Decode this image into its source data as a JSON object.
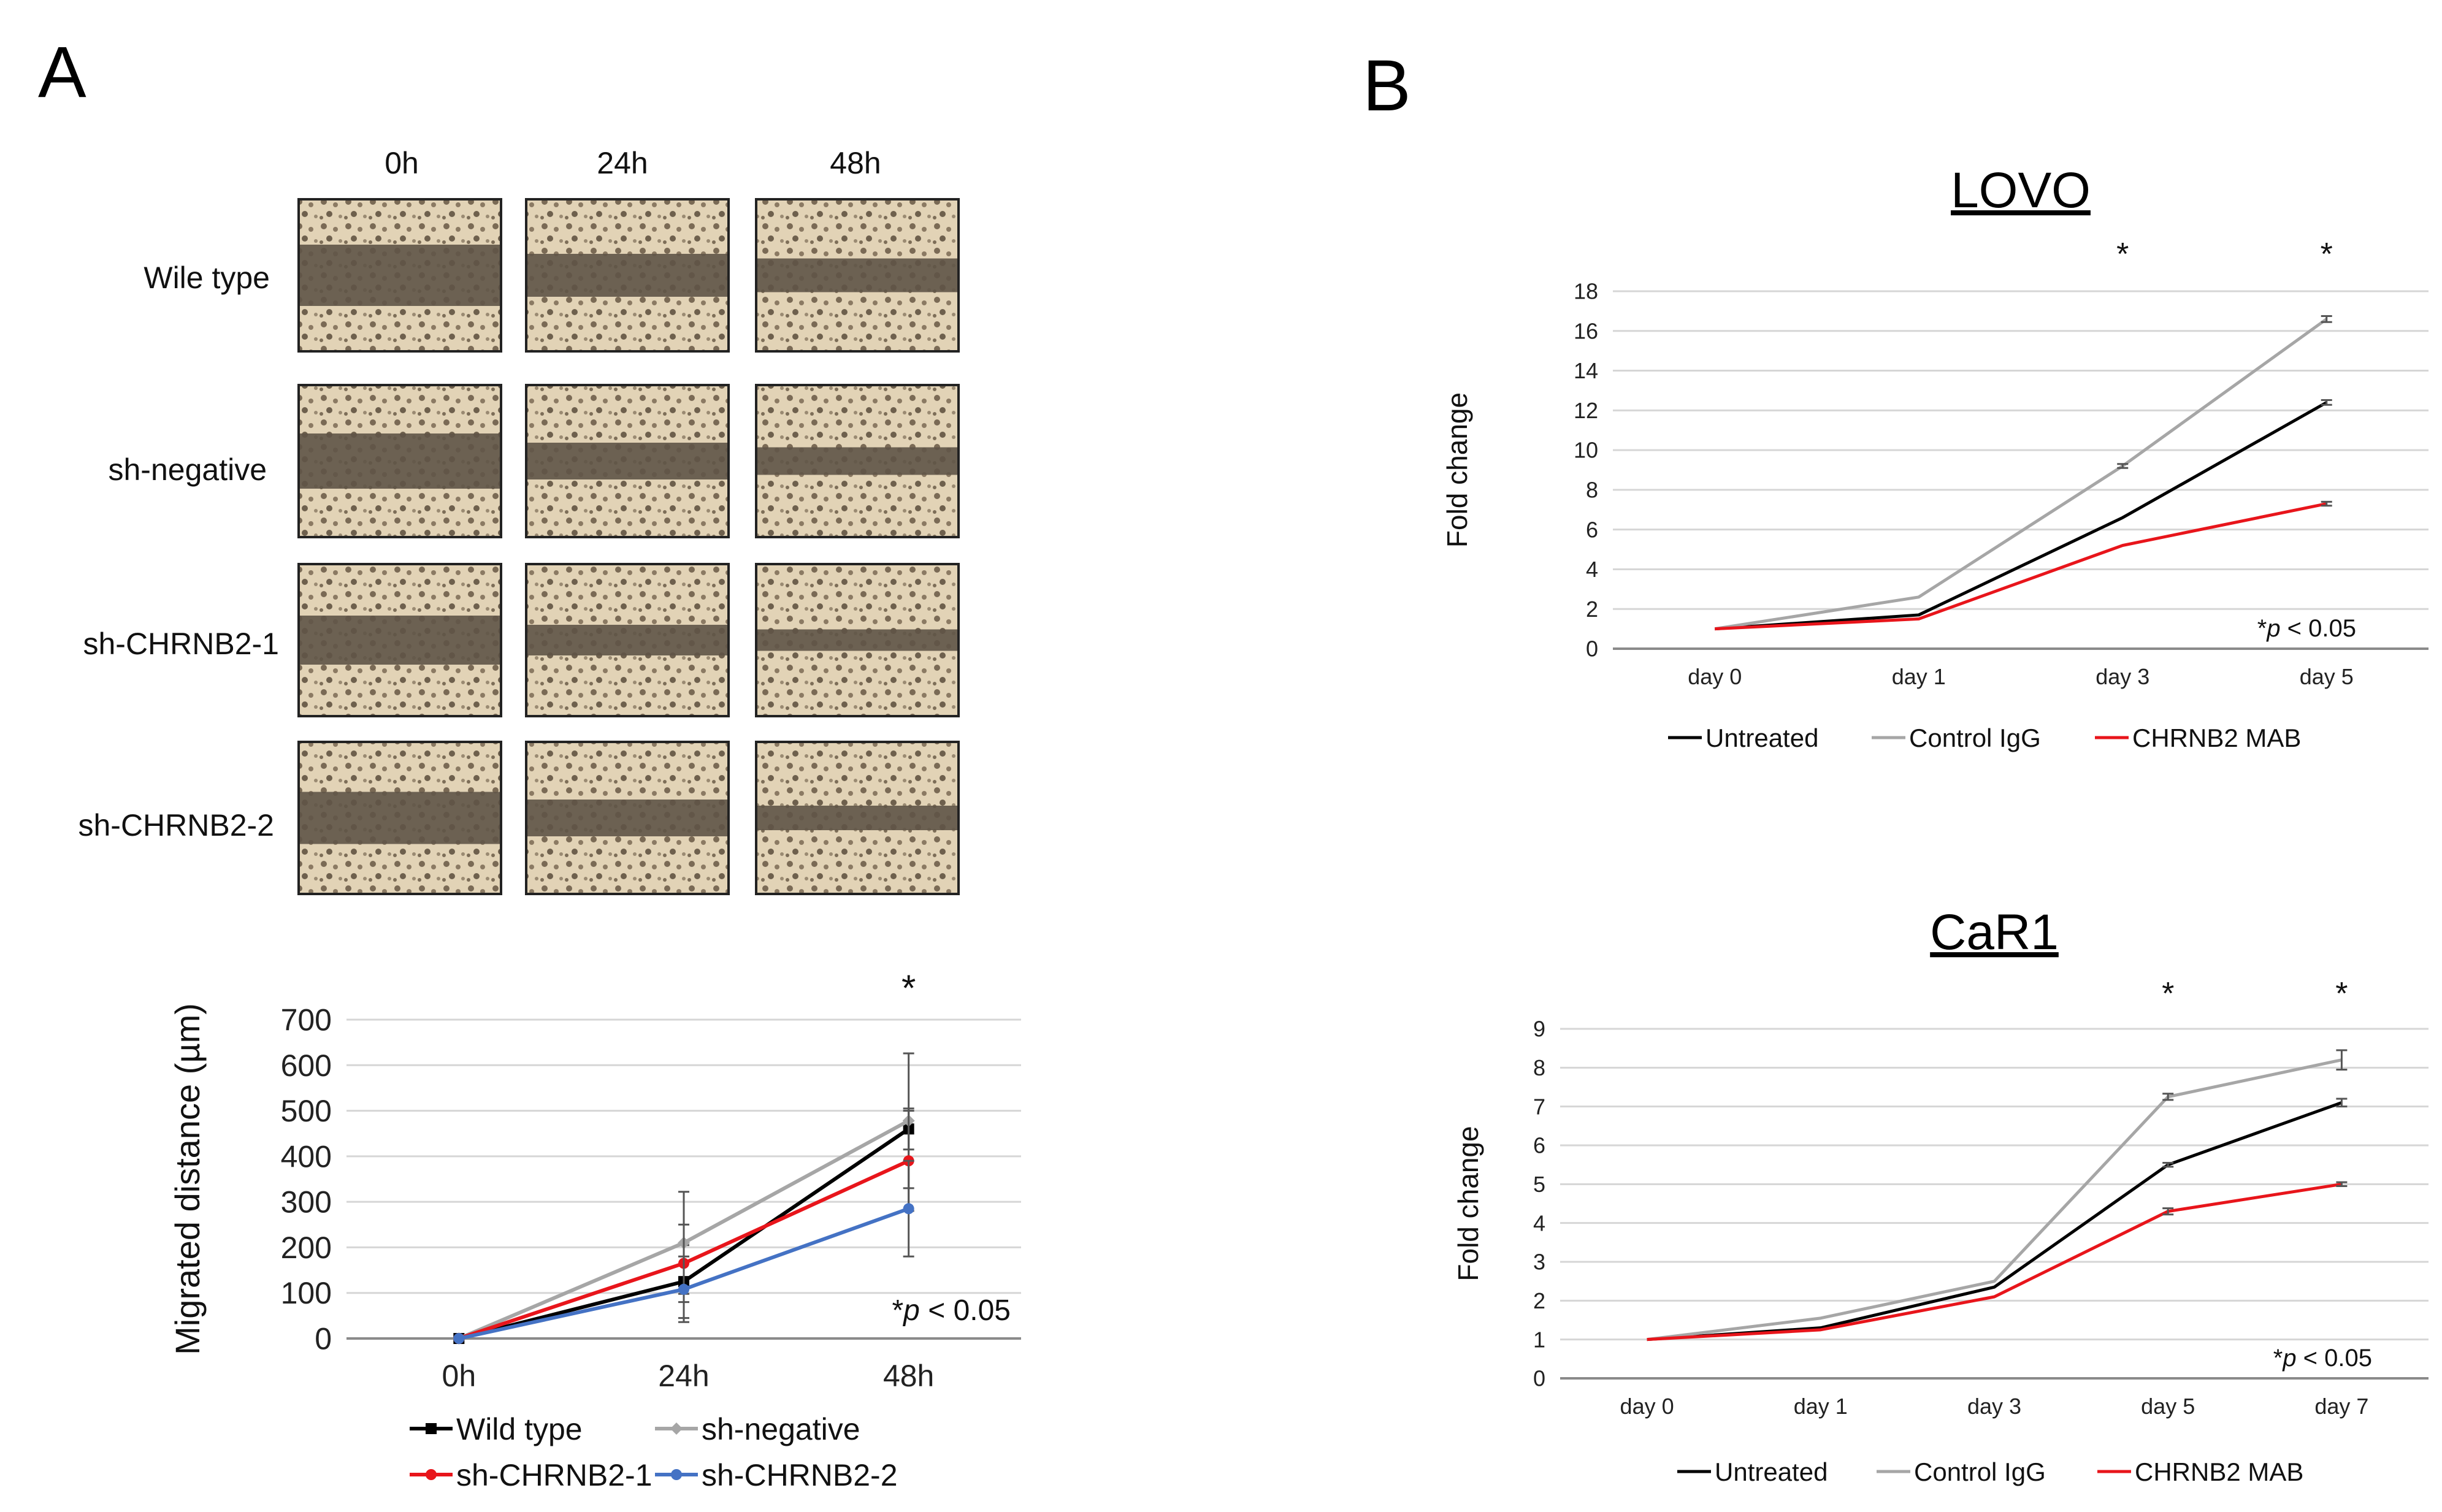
{
  "panel_a_label": "A",
  "panel_b_label": "B",
  "micrographs": {
    "columns": [
      "0h",
      "24h",
      "48h"
    ],
    "rows": [
      "Wile type",
      "sh-negative",
      "sh-CHRNB2-1",
      "sh-CHRNB2-2"
    ]
  },
  "chart_data": [
    {
      "id": "migration",
      "type": "line",
      "title": "",
      "xlabel": "",
      "ylabel": "Migrated distance (µm)",
      "categories": [
        "0h",
        "24h",
        "48h"
      ],
      "ylim": [
        0,
        700
      ],
      "yticks": [
        0,
        100,
        200,
        300,
        400,
        500,
        600,
        700
      ],
      "series": [
        {
          "name": "Wild type",
          "color": "#000000",
          "marker": "square",
          "values": [
            0,
            125,
            460
          ],
          "errors": [
            0,
            80,
            45
          ]
        },
        {
          "name": "sh-negative",
          "color": "#a6a6a6",
          "marker": "diamond",
          "values": [
            0,
            210,
            478
          ],
          "errors": [
            0,
            112,
            148
          ]
        },
        {
          "name": "sh-CHRNB2-1",
          "color": "#e8151b",
          "marker": "circle",
          "values": [
            0,
            165,
            390
          ],
          "errors": [
            0,
            85,
            110
          ]
        },
        {
          "name": "sh-CHRNB2-2",
          "color": "#4472c4",
          "marker": "circle",
          "values": [
            0,
            108,
            285
          ],
          "errors": [
            0,
            72,
            105
          ]
        }
      ],
      "significance": [
        "",
        "",
        "*"
      ],
      "annotation": {
        "star": "*",
        "symbol": "p",
        "rest": " < 0.05"
      }
    },
    {
      "id": "lovo",
      "type": "line",
      "title": "LOVO",
      "xlabel": "",
      "ylabel": "Fold change",
      "categories": [
        "day 0",
        "day 1",
        "day 3",
        "day 5"
      ],
      "ylim": [
        0,
        18
      ],
      "yticks": [
        0,
        2,
        4,
        6,
        8,
        10,
        12,
        14,
        16,
        18
      ],
      "series": [
        {
          "name": "Untreated",
          "color": "#000000",
          "values": [
            1.0,
            1.7,
            6.6,
            12.4
          ],
          "errors": [
            0,
            0,
            0,
            0.12
          ]
        },
        {
          "name": "Control IgG",
          "color": "#a6a6a6",
          "values": [
            1.0,
            2.6,
            9.2,
            16.6
          ],
          "errors": [
            0,
            0,
            0.1,
            0.15
          ]
        },
        {
          "name": "CHRNB2 MAB",
          "color": "#e8151b",
          "values": [
            1.0,
            1.5,
            5.2,
            7.3
          ],
          "errors": [
            0,
            0,
            0,
            0.1
          ]
        }
      ],
      "significance": [
        "",
        "",
        "*",
        "*"
      ],
      "annotation": {
        "star": "*",
        "symbol": "p",
        "rest": " < 0.05"
      }
    },
    {
      "id": "car1",
      "type": "line",
      "title": "CaR1",
      "xlabel": "",
      "ylabel": "Fold change",
      "categories": [
        "day 0",
        "day 1",
        "day 3",
        "day 5",
        "day 7"
      ],
      "ylim": [
        0,
        9
      ],
      "yticks": [
        0,
        1,
        2,
        3,
        4,
        5,
        6,
        7,
        8,
        9
      ],
      "series": [
        {
          "name": "Untreated",
          "color": "#000000",
          "values": [
            1.0,
            1.3,
            2.35,
            5.5,
            7.1
          ],
          "errors": [
            0,
            0,
            0,
            0.05,
            0.1
          ]
        },
        {
          "name": "Control IgG",
          "color": "#a6a6a6",
          "values": [
            1.0,
            1.55,
            2.5,
            7.25,
            8.2
          ],
          "errors": [
            0,
            0,
            0,
            0.08,
            0.25
          ]
        },
        {
          "name": "CHRNB2 MAB",
          "color": "#e8151b",
          "values": [
            1.0,
            1.25,
            2.1,
            4.3,
            5.0
          ],
          "errors": [
            0,
            0,
            0,
            0.08,
            0.05
          ]
        }
      ],
      "significance": [
        "",
        "",
        "",
        "*",
        "*"
      ],
      "annotation": {
        "star": "*",
        "symbol": "p",
        "rest": " < 0.05"
      }
    }
  ]
}
